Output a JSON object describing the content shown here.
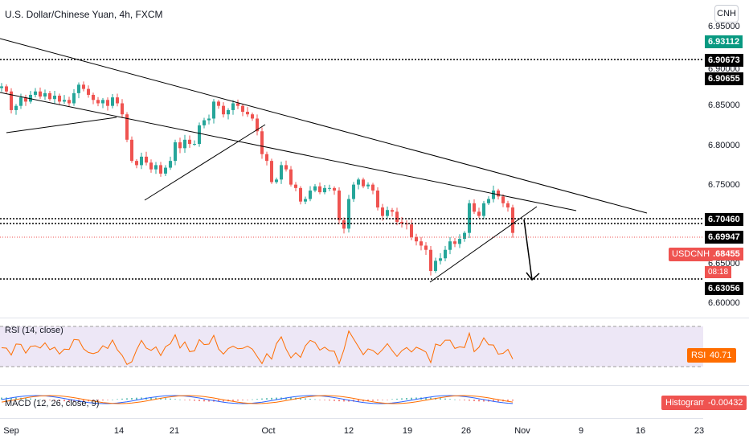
{
  "header": {
    "title": "U.S. Dollar/Chinese Yuan, 4h, FXCM",
    "currency_button": "CNH"
  },
  "price_axis": {
    "ticks": [
      "6.95000",
      "6.90000",
      "6.85000",
      "6.80000",
      "6.75000",
      "6.65000",
      "6.60000"
    ],
    "labels": [
      {
        "text": "6.93112",
        "bg": "#089981",
        "fg": "#ffffff"
      },
      {
        "text": "6.90673",
        "bg": "#000000",
        "fg": "#ffffff"
      },
      {
        "text": "6.90655",
        "bg": "#000000",
        "fg": "#ffffff"
      },
      {
        "text": "6.70460",
        "bg": "#000000",
        "fg": "#ffffff"
      },
      {
        "text": "6.69947",
        "bg": "#000000",
        "fg": "#ffffff"
      },
      {
        "text": "6.68455",
        "bg": "#ef5350",
        "fg": "#ffffff"
      },
      {
        "text": "6.63056",
        "bg": "#000000",
        "fg": "#ffffff"
      }
    ],
    "symbol_label": "USDCNH",
    "countdown": "08:18"
  },
  "rsi": {
    "label": "RSI (14, close)",
    "badge_name": "RSI",
    "badge_value": "40.71"
  },
  "macd": {
    "label": "MACD (12, 26, close, 9)",
    "badge_name": "Histogram",
    "badge_value": "-0.00432"
  },
  "time_axis": {
    "ticks": [
      "Sep",
      "14",
      "21",
      "Oct",
      "12",
      "19",
      "26",
      "Nov",
      "9",
      "16",
      "23"
    ]
  },
  "colors": {
    "up": "#26a69a",
    "down": "#ef5350",
    "rsi_line": "#ff6d00",
    "rsi_band": "#ede7f6",
    "macd_line": "#2962ff",
    "signal_line": "#ff6d00",
    "hline": "#000000"
  },
  "chart_data": {
    "type": "candlestick",
    "symbol": "USDCNH",
    "interval": "4h",
    "ylim": [
      6.585,
      6.96
    ],
    "close_path": [
      [
        0,
        6.858
      ],
      [
        6,
        6.852
      ],
      [
        12,
        6.83
      ],
      [
        18,
        6.835
      ],
      [
        24,
        6.845
      ],
      [
        30,
        6.84
      ],
      [
        36,
        6.848
      ],
      [
        42,
        6.852
      ],
      [
        48,
        6.846
      ],
      [
        54,
        6.85
      ],
      [
        60,
        6.843
      ],
      [
        66,
        6.847
      ],
      [
        72,
        6.84
      ],
      [
        78,
        6.842
      ],
      [
        84,
        6.838
      ],
      [
        90,
        6.85
      ],
      [
        96,
        6.86
      ],
      [
        102,
        6.855
      ],
      [
        108,
        6.848
      ],
      [
        114,
        6.842
      ],
      [
        120,
        6.838
      ],
      [
        126,
        6.842
      ],
      [
        132,
        6.835
      ],
      [
        138,
        6.845
      ],
      [
        144,
        6.838
      ],
      [
        150,
        6.825
      ],
      [
        156,
        6.795
      ],
      [
        162,
        6.77
      ],
      [
        168,
        6.765
      ],
      [
        174,
        6.775
      ],
      [
        180,
        6.768
      ],
      [
        186,
        6.76
      ],
      [
        192,
        6.765
      ],
      [
        198,
        6.755
      ],
      [
        204,
        6.762
      ],
      [
        210,
        6.77
      ],
      [
        216,
        6.792
      ],
      [
        222,
        6.785
      ],
      [
        228,
        6.795
      ],
      [
        234,
        6.79
      ],
      [
        240,
        6.79
      ],
      [
        246,
        6.812
      ],
      [
        252,
        6.818
      ],
      [
        258,
        6.82
      ],
      [
        264,
        6.84
      ],
      [
        270,
        6.835
      ],
      [
        276,
        6.825
      ],
      [
        282,
        6.83
      ],
      [
        288,
        6.838
      ],
      [
        294,
        6.835
      ],
      [
        300,
        6.828
      ],
      [
        306,
        6.825
      ],
      [
        312,
        6.82
      ],
      [
        318,
        6.805
      ],
      [
        324,
        6.778
      ],
      [
        330,
        6.77
      ],
      [
        336,
        6.745
      ],
      [
        342,
        6.748
      ],
      [
        348,
        6.765
      ],
      [
        354,
        6.76
      ],
      [
        360,
        6.742
      ],
      [
        366,
        6.738
      ],
      [
        372,
        6.722
      ],
      [
        378,
        6.725
      ],
      [
        384,
        6.735
      ],
      [
        390,
        6.74
      ],
      [
        396,
        6.733
      ],
      [
        402,
        6.738
      ],
      [
        408,
        6.738
      ],
      [
        414,
        6.735
      ],
      [
        420,
        6.7
      ],
      [
        426,
        6.69
      ],
      [
        432,
        6.725
      ],
      [
        438,
        6.742
      ],
      [
        444,
        6.748
      ],
      [
        450,
        6.74
      ],
      [
        456,
        6.742
      ],
      [
        462,
        6.735
      ],
      [
        468,
        6.715
      ],
      [
        474,
        6.705
      ],
      [
        480,
        6.712
      ],
      [
        486,
        6.71
      ],
      [
        492,
        6.698
      ],
      [
        498,
        6.696
      ],
      [
        504,
        6.695
      ],
      [
        510,
        6.68
      ],
      [
        516,
        6.675
      ],
      [
        522,
        6.67
      ],
      [
        528,
        6.665
      ],
      [
        534,
        6.64
      ],
      [
        540,
        6.652
      ],
      [
        546,
        6.655
      ],
      [
        552,
        6.665
      ],
      [
        558,
        6.675
      ],
      [
        564,
        6.672
      ],
      [
        570,
        6.678
      ],
      [
        576,
        6.685
      ],
      [
        582,
        6.72
      ],
      [
        588,
        6.71
      ],
      [
        594,
        6.705
      ],
      [
        600,
        6.72
      ],
      [
        606,
        6.725
      ],
      [
        612,
        6.735
      ],
      [
        618,
        6.728
      ],
      [
        624,
        6.72
      ],
      [
        630,
        6.715
      ],
      [
        636,
        6.685
      ]
    ],
    "rsi": {
      "levels": [
        70,
        30
      ]
    }
  }
}
